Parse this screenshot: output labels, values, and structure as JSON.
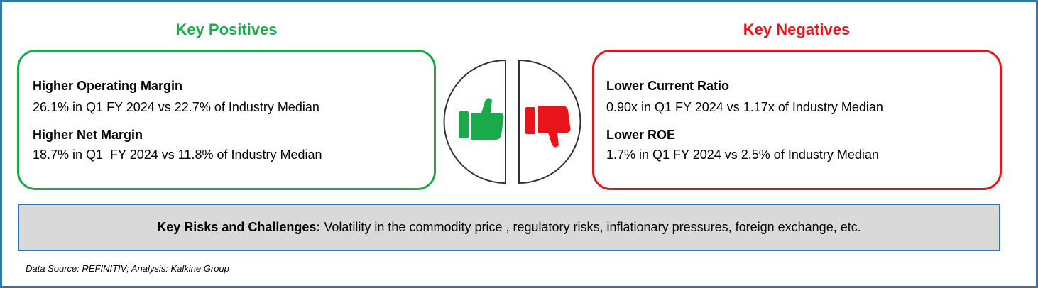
{
  "positives": {
    "title": "Key Positives",
    "items": [
      {
        "heading": "Higher Operating Margin",
        "text": "26.1% in Q1 FY 2024 vs 22.7% of Industry Median"
      },
      {
        "heading": "Higher Net Margin",
        "text": "18.7% in Q1  FY 2024 vs 11.8% of Industry Median"
      }
    ]
  },
  "negatives": {
    "title": "Key Negatives",
    "items": [
      {
        "heading": "Lower Current Ratio",
        "text": "0.90x in Q1 FY 2024 vs 1.17x of Industry Median"
      },
      {
        "heading": "Lower ROE",
        "text": "1.7% in Q1 FY 2024 vs 2.5% of Industry Median"
      }
    ]
  },
  "risks": {
    "label": "Key Risks and Challenges:",
    "text": "Volatility in the commodity price , regulatory risks, inflationary pressures, foreign exchange, etc."
  },
  "source": "Data Source: REFINITIV; Analysis: Kalkine Group"
}
